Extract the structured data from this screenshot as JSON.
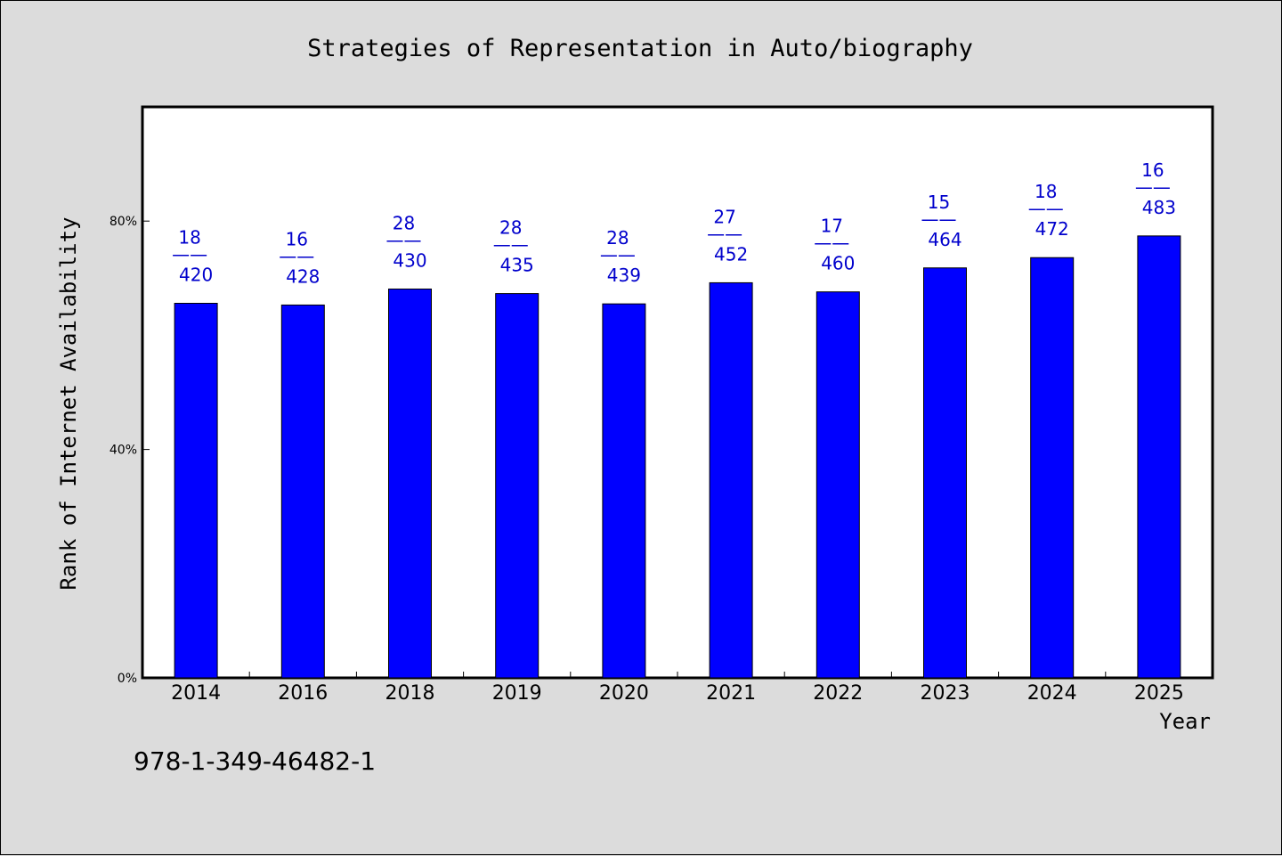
{
  "chart_data": {
    "type": "bar",
    "title": "Strategies of Representation in Auto/biography",
    "xlabel": "Year",
    "ylabel": "Rank of Internet Availability",
    "categories": [
      "2014",
      "2016",
      "2018",
      "2019",
      "2020",
      "2021",
      "2022",
      "2023",
      "2024",
      "2025"
    ],
    "values": [
      65.6,
      65.3,
      68.1,
      67.3,
      65.5,
      69.2,
      67.6,
      71.8,
      73.6,
      77.4
    ],
    "value_unit": "%",
    "data_labels": [
      {
        "top": "18",
        "sep": "——",
        "bottom": "420"
      },
      {
        "top": "16",
        "sep": "——",
        "bottom": "428"
      },
      {
        "top": "28",
        "sep": "——",
        "bottom": "430"
      },
      {
        "top": "28",
        "sep": "——",
        "bottom": "435"
      },
      {
        "top": "28",
        "sep": "——",
        "bottom": "439"
      },
      {
        "top": "27",
        "sep": "——",
        "bottom": "452"
      },
      {
        "top": "17",
        "sep": "——",
        "bottom": "460"
      },
      {
        "top": "15",
        "sep": "——",
        "bottom": "464"
      },
      {
        "top": "18",
        "sep": "——",
        "bottom": "472"
      },
      {
        "top": "16",
        "sep": "——",
        "bottom": "483"
      }
    ],
    "ylim": [
      0,
      100
    ],
    "yticks": [
      0,
      40,
      80
    ],
    "ytick_labels": [
      "0%",
      "40%",
      "80%"
    ],
    "grid": false,
    "legend": "none"
  },
  "footer": {
    "isbn": "978-1-349-46482-1"
  },
  "colors": {
    "bar": "#0000ff",
    "bar_outline": "#000000",
    "data_label": "#0000cc",
    "background": "#dcdcdc",
    "plot_background": "#ffffff"
  }
}
